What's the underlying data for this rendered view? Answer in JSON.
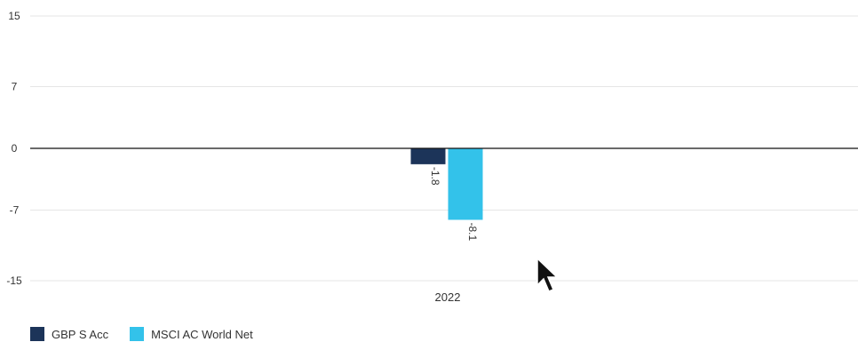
{
  "chart_data": {
    "type": "bar",
    "categories": [
      "2022"
    ],
    "series": [
      {
        "name": "GBP S Acc",
        "values": [
          -1.8
        ],
        "color": "#1c3459"
      },
      {
        "name": "MSCI AC World Net",
        "values": [
          -8.1
        ],
        "color": "#33c2ea"
      }
    ],
    "data_labels": [
      "-1.8",
      "-8.1"
    ],
    "yticks": [
      "15",
      "7",
      "0",
      "-7",
      "-15"
    ],
    "ylim": [
      -15,
      15
    ],
    "grid": true,
    "legend_position": "bottom-left",
    "title": "",
    "xlabel": "",
    "ylabel": ""
  },
  "legend": {
    "items": [
      {
        "label": "GBP S Acc",
        "color": "#1c3459"
      },
      {
        "label": "MSCI AC World Net",
        "color": "#33c2ea"
      }
    ]
  },
  "cursor": {
    "icon": "mouse-pointer-icon"
  }
}
